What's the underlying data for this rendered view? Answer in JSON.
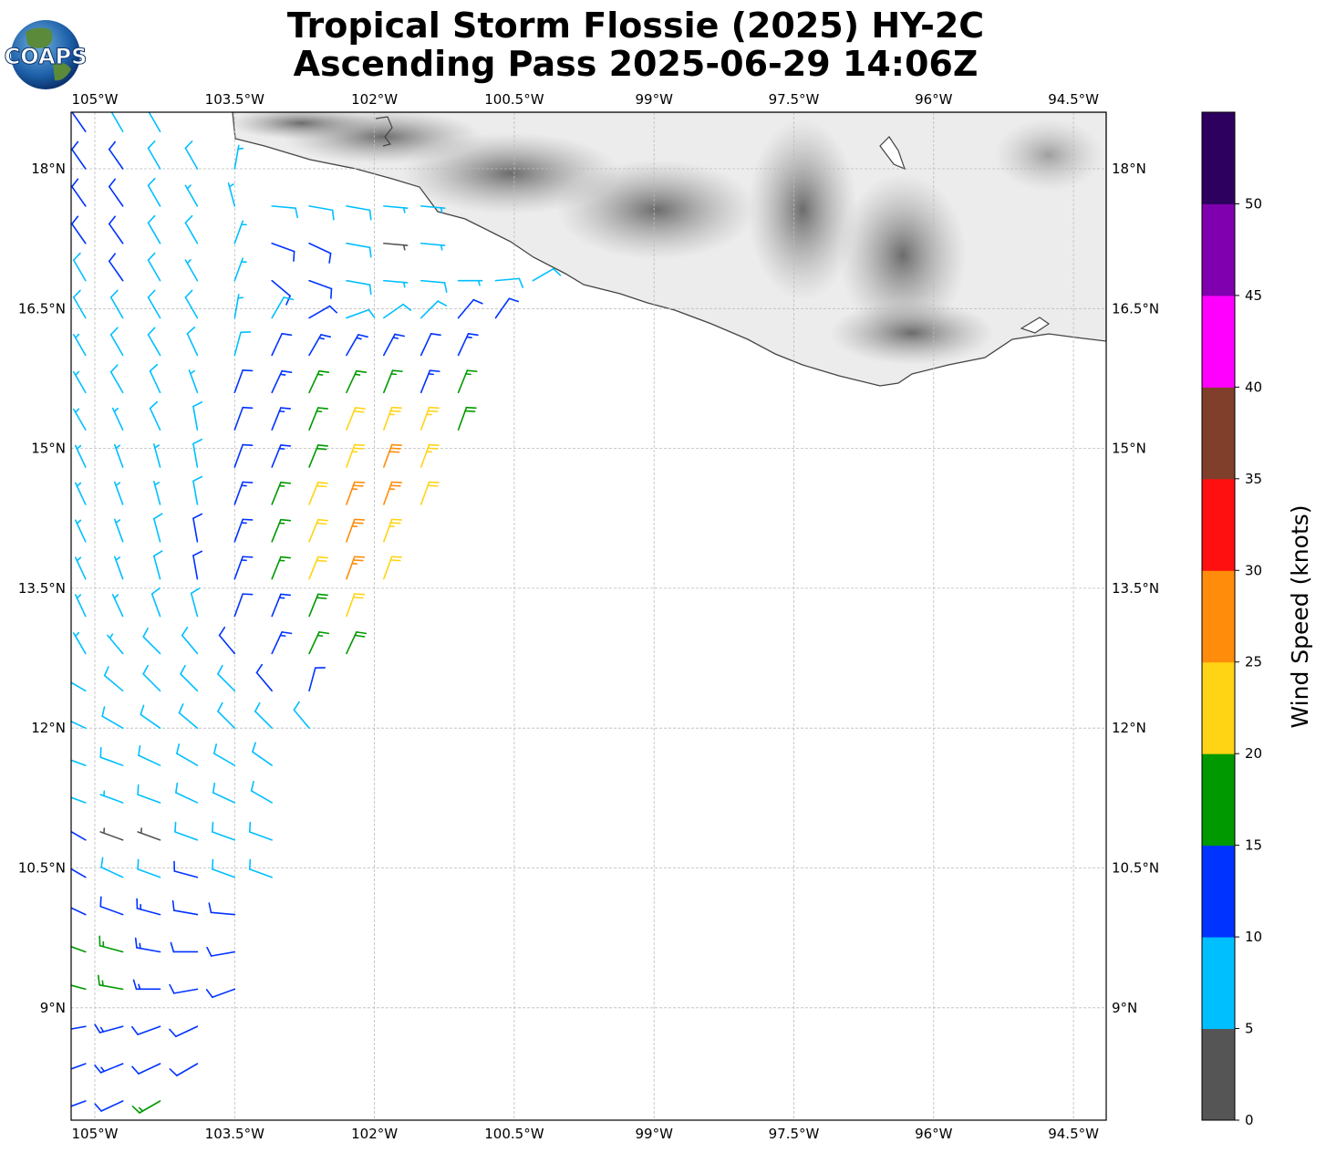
{
  "header": {
    "title_line1": "Tropical Storm Flossie (2025) HY-2C",
    "title_line2": "Ascending Pass 2025-06-29 14:06Z",
    "logo_text": "COAPS"
  },
  "chart_data": {
    "type": "wind-barb-map",
    "title": "Tropical Storm Flossie (2025) HY-2C Ascending Pass 2025-06-29 14:06Z",
    "lon_range": [
      -105.25,
      -94.15
    ],
    "lat_range": [
      7.8,
      18.6
    ],
    "grid": true,
    "lon_ticks": [
      {
        "value": -105,
        "label": "105°W"
      },
      {
        "value": -103.5,
        "label": "103.5°W"
      },
      {
        "value": -102,
        "label": "102°W"
      },
      {
        "value": -100.5,
        "label": "100.5°W"
      },
      {
        "value": -99,
        "label": "99°W"
      },
      {
        "value": -97.5,
        "label": "97.5°W"
      },
      {
        "value": -96,
        "label": "96°W"
      },
      {
        "value": -94.5,
        "label": "94.5°W"
      }
    ],
    "lat_ticks": [
      {
        "value": 18,
        "label": "18°N"
      },
      {
        "value": 16.5,
        "label": "16.5°N"
      },
      {
        "value": 15,
        "label": "15°N"
      },
      {
        "value": 13.5,
        "label": "13.5°N"
      },
      {
        "value": 12,
        "label": "12°N"
      },
      {
        "value": 10.5,
        "label": "10.5°N"
      },
      {
        "value": 9,
        "label": "9°N"
      }
    ],
    "colorbar": {
      "label": "Wind Speed (knots)",
      "range": [
        0,
        55
      ],
      "bin_size": 5,
      "ticks": [
        "0",
        "5",
        "10",
        "15",
        "20",
        "25",
        "30",
        "35",
        "40",
        "45",
        "50"
      ],
      "colors": [
        "#555555",
        "#00bfff",
        "#0033ff",
        "#009900",
        "#ffd414",
        "#ff8c0a",
        "#ff1010",
        "#7f3f2a",
        "#ff00ff",
        "#8000b0",
        "#2d0060"
      ]
    },
    "barbs_note": "rows of wind barbs; lon = lon_start + i*lon_step; staff_dir_deg = direction the barb staff points (clockwise from north); speed in knots",
    "barb_rows": [
      {
        "lat": 18.4,
        "lon_start": -105.1,
        "lon_step": 0.4,
        "speed": [
          12,
          9,
          8
        ],
        "staff_dir_deg": [
          325,
          330,
          330
        ]
      },
      {
        "lat": 18.0,
        "lon_start": -105.1,
        "lon_step": 0.4,
        "speed": [
          12,
          11,
          8,
          8,
          7
        ],
        "staff_dir_deg": [
          325,
          325,
          330,
          330,
          10
        ]
      },
      {
        "lat": 17.6,
        "lon_start": -105.1,
        "lon_step": 0.4,
        "speed": [
          12,
          10,
          8,
          7,
          7,
          8,
          9,
          8,
          6,
          7
        ],
        "staff_dir_deg": [
          325,
          325,
          330,
          330,
          345,
          95,
          100,
          100,
          95,
          95
        ]
      },
      {
        "lat": 17.2,
        "lon_start": -105.1,
        "lon_step": 0.4,
        "speed": [
          11,
          12,
          9,
          8,
          6,
          12,
          11,
          8,
          4,
          7
        ],
        "staff_dir_deg": [
          325,
          325,
          330,
          330,
          20,
          110,
          115,
          100,
          95,
          95
        ]
      },
      {
        "lat": 16.8,
        "lon_start": -105.1,
        "lon_step": 0.4,
        "speed": [
          9,
          12,
          8,
          7,
          6,
          11,
          10,
          8,
          7,
          8,
          7,
          8,
          9
        ],
        "staff_dir_deg": [
          330,
          325,
          330,
          330,
          20,
          130,
          110,
          100,
          95,
          95,
          90,
          85,
          60
        ]
      },
      {
        "lat": 16.4,
        "lon_start": -105.1,
        "lon_step": 0.4,
        "speed": [
          8,
          9,
          8,
          8,
          7,
          8,
          12,
          9,
          8,
          9,
          11,
          12
        ],
        "staff_dir_deg": [
          330,
          330,
          330,
          330,
          10,
          30,
          60,
          70,
          55,
          45,
          40,
          35
        ]
      },
      {
        "lat": 16.0,
        "lon_start": -105.1,
        "lon_step": 0.4,
        "speed": [
          7,
          8,
          8,
          9,
          8,
          11,
          13,
          14,
          13,
          12,
          14
        ],
        "staff_dir_deg": [
          330,
          330,
          330,
          335,
          15,
          25,
          30,
          30,
          28,
          25,
          25
        ]
      },
      {
        "lat": 15.6,
        "lon_start": -105.1,
        "lon_step": 0.4,
        "speed": [
          7,
          8,
          8,
          7,
          10,
          13,
          15,
          17,
          15,
          14,
          16
        ],
        "staff_dir_deg": [
          330,
          330,
          335,
          340,
          20,
          25,
          25,
          25,
          22,
          22,
          22
        ]
      },
      {
        "lat": 15.2,
        "lon_start": -105.1,
        "lon_step": 0.4,
        "speed": [
          6,
          7,
          8,
          8,
          11,
          14,
          17,
          21,
          24,
          23,
          18
        ],
        "staff_dir_deg": [
          330,
          335,
          335,
          350,
          20,
          22,
          22,
          22,
          20,
          20,
          20
        ]
      },
      {
        "lat": 14.8,
        "lon_start": -105.1,
        "lon_step": 0.4,
        "speed": [
          7,
          6,
          7,
          8,
          12,
          14,
          19,
          24,
          28,
          24
        ],
        "staff_dir_deg": [
          335,
          340,
          345,
          350,
          20,
          22,
          22,
          20,
          20,
          20
        ]
      },
      {
        "lat": 14.4,
        "lon_start": -105.1,
        "lon_step": 0.4,
        "speed": [
          6,
          6,
          7,
          9,
          13,
          16,
          21,
          26,
          27,
          22
        ],
        "staff_dir_deg": [
          335,
          340,
          345,
          350,
          20,
          22,
          22,
          20,
          20,
          20
        ]
      },
      {
        "lat": 14.0,
        "lon_start": -105.1,
        "lon_step": 0.4,
        "speed": [
          7,
          6,
          8,
          10,
          13,
          17,
          22,
          27,
          24
        ],
        "staff_dir_deg": [
          335,
          340,
          345,
          350,
          20,
          22,
          22,
          20,
          20
        ]
      },
      {
        "lat": 13.6,
        "lon_start": -105.1,
        "lon_step": 0.4,
        "speed": [
          6,
          7,
          8,
          10,
          13,
          16,
          21,
          26,
          22
        ],
        "staff_dir_deg": [
          335,
          340,
          345,
          350,
          20,
          22,
          22,
          20,
          20
        ]
      },
      {
        "lat": 13.2,
        "lon_start": -105.1,
        "lon_step": 0.4,
        "speed": [
          7,
          7,
          8,
          9,
          12,
          14,
          19,
          22
        ],
        "staff_dir_deg": [
          335,
          335,
          340,
          345,
          20,
          22,
          22,
          20
        ]
      },
      {
        "lat": 12.8,
        "lon_start": -105.1,
        "lon_step": 0.4,
        "speed": [
          6,
          7,
          9,
          9,
          12,
          13,
          17,
          18
        ],
        "staff_dir_deg": [
          330,
          320,
          315,
          320,
          320,
          25,
          25,
          25
        ]
      },
      {
        "lat": 12.4,
        "lon_start": -105.1,
        "lon_step": 0.4,
        "speed": [
          7,
          8,
          8,
          8,
          9,
          12,
          11
        ],
        "staff_dir_deg": [
          300,
          310,
          315,
          315,
          315,
          320,
          15
        ]
      },
      {
        "lat": 12.0,
        "lon_start": -105.1,
        "lon_step": 0.4,
        "speed": [
          7,
          8,
          8,
          9,
          9,
          8,
          8
        ],
        "staff_dir_deg": [
          295,
          300,
          305,
          310,
          315,
          315,
          320
        ]
      },
      {
        "lat": 11.6,
        "lon_start": -105.1,
        "lon_step": 0.4,
        "speed": [
          7,
          8,
          8,
          8,
          9,
          9
        ],
        "staff_dir_deg": [
          290,
          290,
          295,
          300,
          300,
          305
        ]
      },
      {
        "lat": 11.2,
        "lon_start": -105.1,
        "lon_step": 0.4,
        "speed": [
          8,
          7,
          8,
          9,
          8,
          9
        ],
        "staff_dir_deg": [
          290,
          290,
          290,
          295,
          295,
          300
        ]
      },
      {
        "lat": 10.8,
        "lon_start": -105.1,
        "lon_step": 0.4,
        "speed": [
          11,
          4,
          3,
          8,
          9,
          8
        ],
        "staff_dir_deg": [
          300,
          290,
          290,
          290,
          290,
          290
        ]
      },
      {
        "lat": 10.4,
        "lon_start": -105.1,
        "lon_step": 0.4,
        "speed": [
          12,
          9,
          9,
          11,
          9,
          8
        ],
        "staff_dir_deg": [
          300,
          295,
          290,
          285,
          290,
          290
        ]
      },
      {
        "lat": 10.0,
        "lon_start": -105.1,
        "lon_step": 0.4,
        "speed": [
          13,
          12,
          13,
          12,
          11
        ],
        "staff_dir_deg": [
          295,
          290,
          285,
          280,
          275
        ]
      },
      {
        "lat": 9.6,
        "lon_start": -105.1,
        "lon_step": 0.4,
        "speed": [
          17,
          16,
          14,
          12,
          12
        ],
        "staff_dir_deg": [
          290,
          285,
          280,
          270,
          260
        ]
      },
      {
        "lat": 9.2,
        "lon_start": -105.1,
        "lon_step": 0.4,
        "speed": [
          19,
          16,
          13,
          12,
          11
        ],
        "staff_dir_deg": [
          285,
          280,
          270,
          260,
          250
        ]
      },
      {
        "lat": 8.8,
        "lon_start": -105.1,
        "lon_step": 0.4,
        "speed": [
          13,
          14,
          12,
          12
        ],
        "staff_dir_deg": [
          260,
          255,
          250,
          245
        ]
      },
      {
        "lat": 8.4,
        "lon_start": -105.1,
        "lon_step": 0.4,
        "speed": [
          13,
          13,
          12,
          12
        ],
        "staff_dir_deg": [
          250,
          248,
          245,
          240
        ]
      },
      {
        "lat": 8.0,
        "lon_start": -105.1,
        "lon_step": 0.4,
        "speed": [
          12,
          12,
          16
        ],
        "staff_dir_deg": [
          250,
          245,
          240
        ]
      }
    ]
  }
}
